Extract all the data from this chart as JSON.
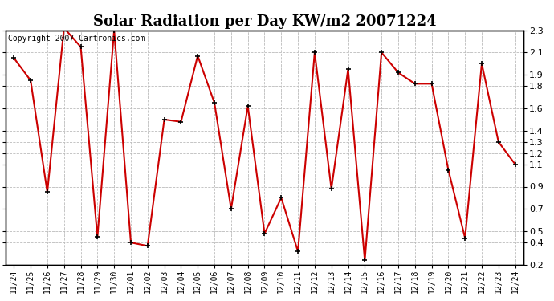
{
  "title": "Solar Radiation per Day KW/m2 20071224",
  "copyright_text": "Copyright 2007 Cartronics.com",
  "labels": [
    "11/24",
    "11/25",
    "11/26",
    "11/27",
    "11/28",
    "11/29",
    "11/30",
    "12/01",
    "12/02",
    "12/03",
    "12/04",
    "12/05",
    "12/06",
    "12/07",
    "12/08",
    "12/09",
    "12/10",
    "12/11",
    "12/12",
    "12/13",
    "12/14",
    "12/15",
    "12/16",
    "12/17",
    "12/18",
    "12/19",
    "12/20",
    "12/21",
    "12/22",
    "12/23",
    "12/24"
  ],
  "values": [
    2.05,
    1.85,
    0.85,
    2.32,
    2.15,
    0.45,
    2.3,
    0.4,
    0.37,
    1.5,
    1.48,
    2.07,
    1.65,
    0.7,
    1.62,
    0.48,
    0.8,
    0.32,
    2.1,
    0.88,
    1.95,
    0.24,
    2.1,
    1.92,
    1.82,
    1.82,
    1.05,
    0.44,
    2.0,
    1.3,
    1.1
  ],
  "ylim_min": 0.2,
  "ylim_max": 2.3,
  "yticks": [
    0.2,
    0.4,
    0.5,
    0.7,
    0.9,
    1.1,
    1.2,
    1.3,
    1.4,
    1.6,
    1.8,
    1.9,
    2.1,
    2.3
  ],
  "line_color": "#cc0000",
  "bg_color": "#ffffff",
  "grid_color": "#bbbbbb",
  "title_fontsize": 13,
  "copyright_fontsize": 7,
  "tick_fontsize": 7,
  "right_ytick_fontsize": 8
}
